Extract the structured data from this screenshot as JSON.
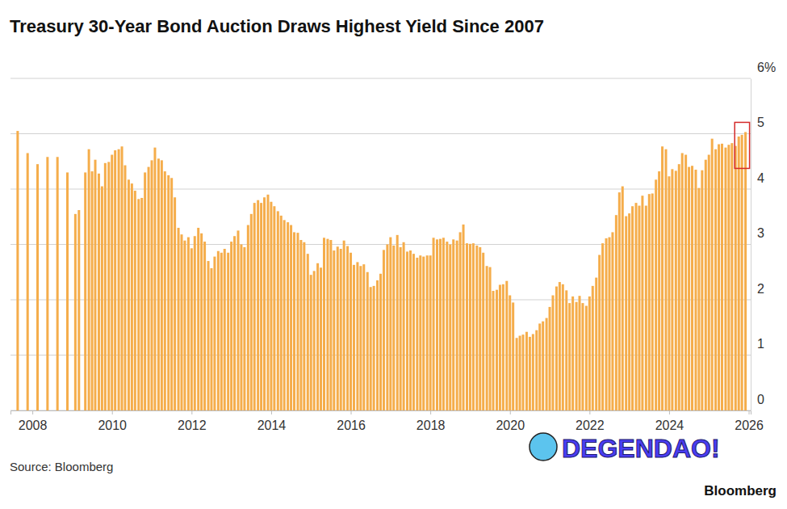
{
  "chart_data": {
    "type": "bar",
    "title": "Treasury 30-Year Bond Auction Draws Highest Yield Since 2007",
    "x": [
      2007.63,
      2007.88,
      2008.13,
      2008.38,
      2008.63,
      2008.88,
      2009.08,
      2009.17,
      2009.33,
      2009.42,
      2009.5,
      2009.58,
      2009.67,
      2009.75,
      2009.83,
      2009.92,
      2010,
      2010.08,
      2010.17,
      2010.25,
      2010.33,
      2010.42,
      2010.5,
      2010.58,
      2010.67,
      2010.75,
      2010.83,
      2010.92,
      2011,
      2011.08,
      2011.17,
      2011.25,
      2011.33,
      2011.42,
      2011.5,
      2011.58,
      2011.67,
      2011.75,
      2011.83,
      2011.92,
      2012,
      2012.08,
      2012.17,
      2012.25,
      2012.33,
      2012.42,
      2012.5,
      2012.58,
      2012.67,
      2012.75,
      2012.83,
      2012.92,
      2013,
      2013.08,
      2013.17,
      2013.25,
      2013.33,
      2013.42,
      2013.5,
      2013.58,
      2013.67,
      2013.75,
      2013.83,
      2013.92,
      2014,
      2014.08,
      2014.17,
      2014.25,
      2014.33,
      2014.42,
      2014.5,
      2014.58,
      2014.67,
      2014.75,
      2014.83,
      2014.92,
      2015,
      2015.08,
      2015.17,
      2015.25,
      2015.33,
      2015.42,
      2015.5,
      2015.58,
      2015.67,
      2015.75,
      2015.83,
      2015.92,
      2016,
      2016.08,
      2016.17,
      2016.25,
      2016.33,
      2016.42,
      2016.5,
      2016.58,
      2016.67,
      2016.75,
      2016.83,
      2016.92,
      2017,
      2017.08,
      2017.17,
      2017.25,
      2017.33,
      2017.42,
      2017.5,
      2017.58,
      2017.67,
      2017.75,
      2017.83,
      2017.92,
      2018,
      2018.08,
      2018.17,
      2018.25,
      2018.33,
      2018.42,
      2018.5,
      2018.58,
      2018.67,
      2018.75,
      2018.83,
      2018.92,
      2019,
      2019.08,
      2019.17,
      2019.25,
      2019.33,
      2019.42,
      2019.5,
      2019.58,
      2019.67,
      2019.75,
      2019.83,
      2019.92,
      2020,
      2020.08,
      2020.17,
      2020.25,
      2020.33,
      2020.42,
      2020.5,
      2020.58,
      2020.67,
      2020.75,
      2020.83,
      2020.92,
      2021,
      2021.08,
      2021.17,
      2021.25,
      2021.33,
      2021.42,
      2021.5,
      2021.58,
      2021.67,
      2021.75,
      2021.83,
      2021.92,
      2022,
      2022.08,
      2022.17,
      2022.25,
      2022.33,
      2022.42,
      2022.5,
      2022.58,
      2022.67,
      2022.75,
      2022.83,
      2022.92,
      2023,
      2023.08,
      2023.17,
      2023.25,
      2023.33,
      2023.42,
      2023.5,
      2023.58,
      2023.67,
      2023.75,
      2023.83,
      2023.92,
      2024,
      2024.08,
      2024.17,
      2024.25,
      2024.33,
      2024.42,
      2024.5,
      2024.58,
      2024.67,
      2024.75,
      2024.83,
      2024.92,
      2025,
      2025.08,
      2025.17,
      2025.25,
      2025.33,
      2025.42,
      2025.5,
      2025.58,
      2025.67,
      2025.75,
      2025.83,
      2025.92
    ],
    "values": [
      5.05,
      4.65,
      4.45,
      4.58,
      4.58,
      4.3,
      3.55,
      3.62,
      4.3,
      4.72,
      4.32,
      4.53,
      4.28,
      4.05,
      4.47,
      4.49,
      4.62,
      4.7,
      4.72,
      4.77,
      4.43,
      4.17,
      4.1,
      3.97,
      3.82,
      3.84,
      4.3,
      4.4,
      4.52,
      4.75,
      4.55,
      4.52,
      4.32,
      4.25,
      4.2,
      3.85,
      3.3,
      3.18,
      3.07,
      3.13,
      2.93,
      3.15,
      3.3,
      3.2,
      3.05,
      2.7,
      2.57,
      2.78,
      2.88,
      2.85,
      2.92,
      2.85,
      3.05,
      3.15,
      3.25,
      3.0,
      2.95,
      3.35,
      3.55,
      3.75,
      3.8,
      3.75,
      3.85,
      3.9,
      3.77,
      3.69,
      3.6,
      3.52,
      3.44,
      3.4,
      3.35,
      3.22,
      3.21,
      3.08,
      3.04,
      2.83,
      2.45,
      2.52,
      2.66,
      2.58,
      3.12,
      3.1,
      3.08,
      2.89,
      2.96,
      2.92,
      3.07,
      2.97,
      2.85,
      2.63,
      2.68,
      2.61,
      2.64,
      2.5,
      2.23,
      2.25,
      2.35,
      2.47,
      2.9,
      3.0,
      3.13,
      2.98,
      3.17,
      2.95,
      3.04,
      2.87,
      2.89,
      2.83,
      2.76,
      2.8,
      2.78,
      2.8,
      2.8,
      3.12,
      3.09,
      3.1,
      3.12,
      3.05,
      3.0,
      3.09,
      3.07,
      3.22,
      3.36,
      3.02,
      3.01,
      3.02,
      2.98,
      2.95,
      2.85,
      2.61,
      2.59,
      2.16,
      2.18,
      2.27,
      2.28,
      2.34,
      2.08,
      1.95,
      1.31,
      1.35,
      1.37,
      1.42,
      1.33,
      1.38,
      1.45,
      1.57,
      1.61,
      1.67,
      1.87,
      2.08,
      2.24,
      2.32,
      2.28,
      2.17,
      1.94,
      2.06,
      1.96,
      2.07,
      1.94,
      1.89,
      2.06,
      2.25,
      2.4,
      2.81,
      3.02,
      3.11,
      3.13,
      3.22,
      3.53,
      3.94,
      4.05,
      3.51,
      3.56,
      3.69,
      3.75,
      3.7,
      3.88,
      3.7,
      3.91,
      3.92,
      4.17,
      4.32,
      4.77,
      4.72,
      4.23,
      4.36,
      4.33,
      4.45,
      4.65,
      4.62,
      4.4,
      4.42,
      4.35,
      4.02,
      4.34,
      4.53,
      4.62,
      4.91,
      4.72,
      4.81,
      4.82,
      4.75,
      4.8,
      4.83,
      4.78,
      4.95,
      4.98,
      5.03
    ],
    "color": "#f5ad4b",
    "xlim": [
      2007.45,
      2026.05
    ],
    "xticks": [
      2008,
      2010,
      2012,
      2014,
      2016,
      2018,
      2020,
      2022,
      2024,
      2026
    ],
    "ylim": [
      0,
      6
    ],
    "yticks": [
      0,
      1,
      2,
      3,
      4,
      5,
      {
        "value": 6,
        "label": "6%"
      }
    ],
    "grid": true,
    "source": "Source: Bloomberg",
    "credit": "Bloomberg",
    "watermark": "DEGENDAO!"
  }
}
